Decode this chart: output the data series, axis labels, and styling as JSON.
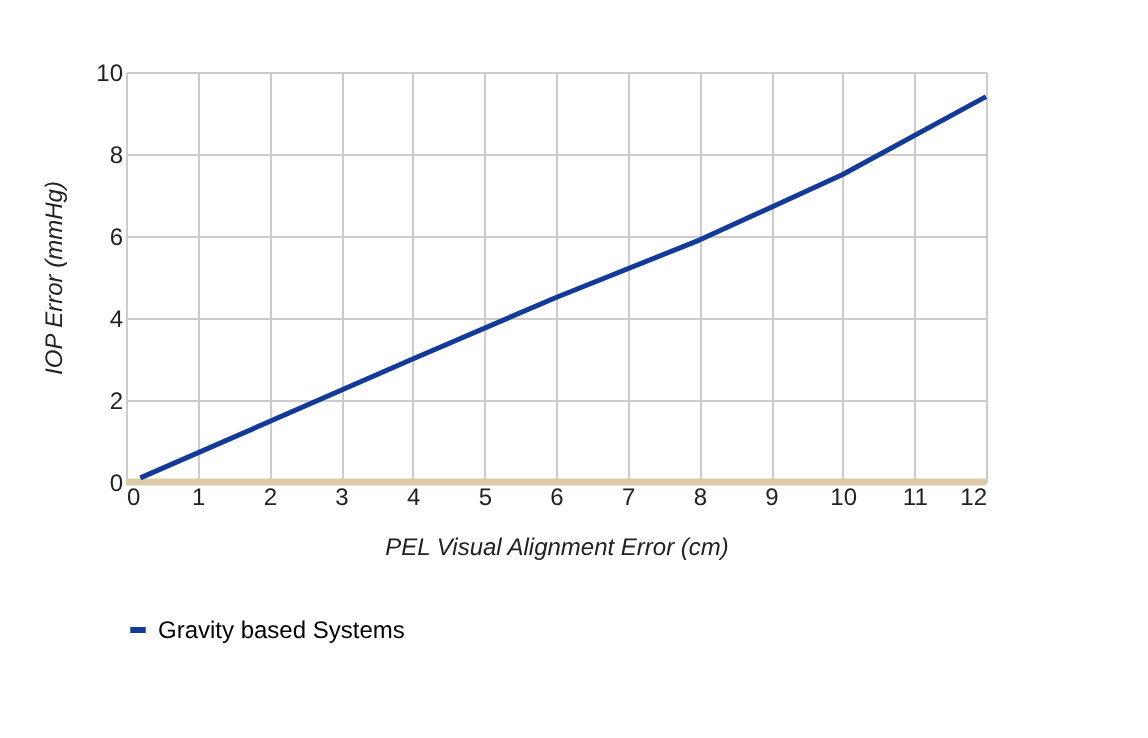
{
  "chart_data": {
    "type": "line",
    "xlabel": "PEL Visual Alignment Error (cm)",
    "ylabel": "IOP Error (mmHg)",
    "xlim": [
      0,
      12
    ],
    "xticks": [
      0,
      1,
      2,
      3,
      4,
      5,
      6,
      7,
      8,
      9,
      10,
      11,
      12
    ],
    "ylim": [
      0,
      10
    ],
    "yticks": [
      0,
      2,
      4,
      6,
      8,
      10
    ],
    "series": [
      {
        "name": "Gravity based Systems",
        "color": "#123a96",
        "x": [
          0.2,
          4,
          6,
          8,
          10,
          12
        ],
        "values": [
          0.1,
          3.0,
          4.5,
          5.9,
          7.5,
          9.4
        ]
      },
      {
        "color": "#dccba6",
        "x": [
          0,
          12
        ],
        "values": [
          0,
          0
        ]
      }
    ],
    "grid": true,
    "legend": "bottom",
    "line_style": "solid",
    "marker": "none"
  }
}
